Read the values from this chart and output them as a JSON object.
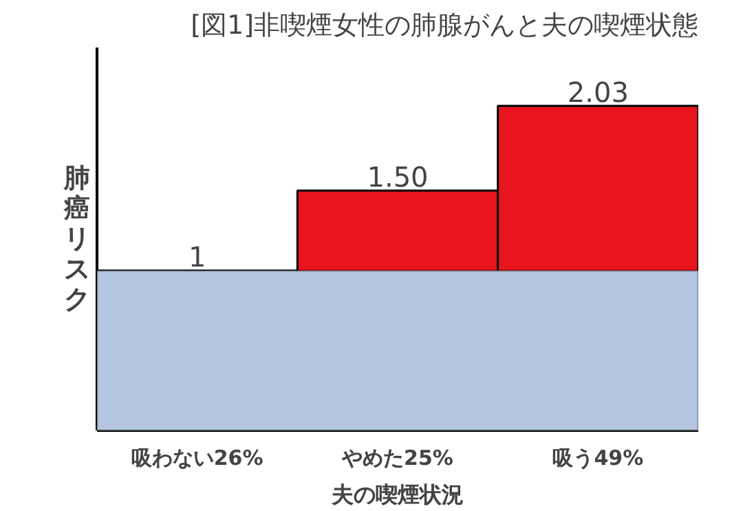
{
  "chart_data": {
    "type": "bar",
    "title": "[図1]非喫煙女性の肺腺がんと夫の喫煙状態",
    "xlabel": "夫の喫煙状況",
    "ylabel": "肺癌リスク",
    "categories": [
      "吸わない26%",
      "やめた25%",
      "吸う49%"
    ],
    "values": [
      1,
      1.5,
      2.03
    ],
    "color": "#e8141e",
    "data_labels": true,
    "value_labels": [
      "1",
      "1.50",
      "2.03"
    ],
    "bands": [
      {
        "axis": "y",
        "from": 0,
        "to": 1,
        "color": "#b4c6e0"
      }
    ],
    "grid": false,
    "tick_labels": "x"
  }
}
